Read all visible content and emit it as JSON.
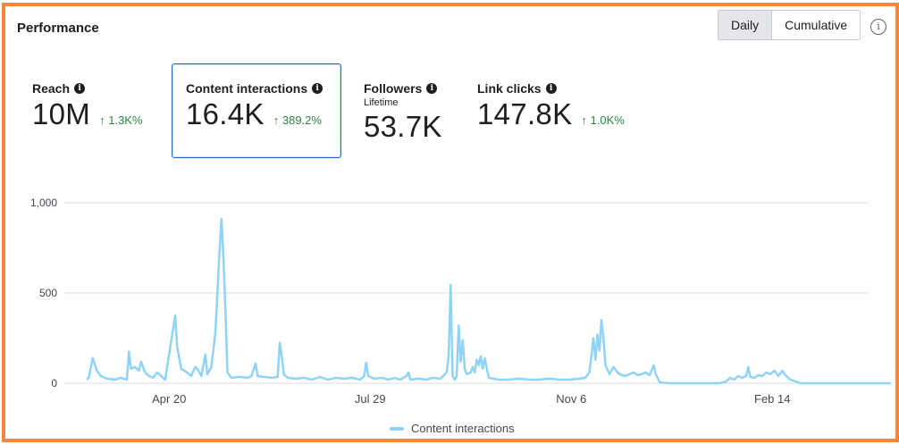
{
  "panel": {
    "title": "Performance"
  },
  "toggle": {
    "daily_label": "Daily",
    "cumulative_label": "Cumulative",
    "active": "Daily"
  },
  "info_glyph": "i",
  "metrics": [
    {
      "label": "Reach",
      "value": "10M",
      "change": "↑ 1.3K%"
    },
    {
      "label": "Content interactions",
      "value": "16.4K",
      "change": "↑ 389.2%",
      "selected": true
    },
    {
      "label": "Followers",
      "sublabel": "Lifetime",
      "value": "53.7K"
    },
    {
      "label": "Link clicks",
      "value": "147.8K",
      "change": "↑ 1.0K%"
    }
  ],
  "chart_data": {
    "type": "line",
    "ylim": [
      0,
      1000
    ],
    "yticks": [
      "0",
      "500",
      "1,000"
    ],
    "xticks": [
      {
        "label": "Apr 20",
        "day": 41
      },
      {
        "label": "Jul 29",
        "day": 141
      },
      {
        "label": "Nov 6",
        "day": 241
      },
      {
        "label": "Feb 14",
        "day": 341
      }
    ],
    "legend": "Content interactions",
    "color": "#8fd3f6",
    "points": [
      [
        0,
        20
      ],
      [
        1,
        30
      ],
      [
        3,
        140
      ],
      [
        5,
        70
      ],
      [
        7,
        40
      ],
      [
        10,
        25
      ],
      [
        14,
        20
      ],
      [
        17,
        30
      ],
      [
        20,
        20
      ],
      [
        21,
        175
      ],
      [
        22,
        80
      ],
      [
        24,
        90
      ],
      [
        26,
        70
      ],
      [
        27,
        120
      ],
      [
        29,
        60
      ],
      [
        31,
        40
      ],
      [
        33,
        30
      ],
      [
        35,
        60
      ],
      [
        37,
        40
      ],
      [
        39,
        20
      ],
      [
        44,
        375
      ],
      [
        45,
        200
      ],
      [
        47,
        80
      ],
      [
        50,
        60
      ],
      [
        52,
        40
      ],
      [
        54,
        90
      ],
      [
        55,
        80
      ],
      [
        57,
        40
      ],
      [
        59,
        160
      ],
      [
        60,
        50
      ],
      [
        62,
        90
      ],
      [
        64,
        280
      ],
      [
        65,
        500
      ],
      [
        66,
        720
      ],
      [
        67,
        910
      ],
      [
        68,
        700
      ],
      [
        69,
        400
      ],
      [
        70,
        60
      ],
      [
        72,
        30
      ],
      [
        76,
        35
      ],
      [
        80,
        30
      ],
      [
        82,
        40
      ],
      [
        84,
        110
      ],
      [
        85,
        40
      ],
      [
        88,
        35
      ],
      [
        92,
        30
      ],
      [
        95,
        35
      ],
      [
        96,
        225
      ],
      [
        97,
        150
      ],
      [
        98,
        50
      ],
      [
        100,
        30
      ],
      [
        104,
        25
      ],
      [
        108,
        30
      ],
      [
        112,
        20
      ],
      [
        116,
        35
      ],
      [
        120,
        20
      ],
      [
        124,
        30
      ],
      [
        128,
        25
      ],
      [
        132,
        30
      ],
      [
        136,
        20
      ],
      [
        138,
        40
      ],
      [
        139,
        115
      ],
      [
        140,
        40
      ],
      [
        143,
        25
      ],
      [
        147,
        30
      ],
      [
        150,
        20
      ],
      [
        153,
        30
      ],
      [
        156,
        20
      ],
      [
        159,
        40
      ],
      [
        160,
        60
      ],
      [
        161,
        20
      ],
      [
        165,
        25
      ],
      [
        169,
        20
      ],
      [
        172,
        30
      ],
      [
        176,
        25
      ],
      [
        179,
        60
      ],
      [
        180,
        150
      ],
      [
        181,
        545
      ],
      [
        182,
        40
      ],
      [
        183,
        20
      ],
      [
        184,
        40
      ],
      [
        185,
        320
      ],
      [
        186,
        120
      ],
      [
        187,
        240
      ],
      [
        188,
        80
      ],
      [
        189,
        50
      ],
      [
        191,
        60
      ],
      [
        192,
        90
      ],
      [
        193,
        60
      ],
      [
        194,
        130
      ],
      [
        195,
        100
      ],
      [
        196,
        150
      ],
      [
        197,
        80
      ],
      [
        198,
        140
      ],
      [
        199,
        80
      ],
      [
        200,
        30
      ],
      [
        205,
        20
      ],
      [
        210,
        20
      ],
      [
        215,
        25
      ],
      [
        220,
        20
      ],
      [
        225,
        20
      ],
      [
        230,
        25
      ],
      [
        235,
        20
      ],
      [
        240,
        20
      ],
      [
        245,
        25
      ],
      [
        248,
        30
      ],
      [
        250,
        60
      ],
      [
        251,
        150
      ],
      [
        252,
        250
      ],
      [
        253,
        130
      ],
      [
        254,
        270
      ],
      [
        255,
        180
      ],
      [
        256,
        350
      ],
      [
        257,
        250
      ],
      [
        258,
        100
      ],
      [
        260,
        50
      ],
      [
        262,
        90
      ],
      [
        264,
        60
      ],
      [
        266,
        45
      ],
      [
        268,
        40
      ],
      [
        270,
        50
      ],
      [
        272,
        60
      ],
      [
        274,
        45
      ],
      [
        276,
        50
      ],
      [
        278,
        60
      ],
      [
        280,
        45
      ],
      [
        282,
        100
      ],
      [
        283,
        50
      ],
      [
        285,
        5
      ],
      [
        290,
        0
      ],
      [
        295,
        0
      ],
      [
        300,
        0
      ],
      [
        305,
        0
      ],
      [
        310,
        0
      ],
      [
        315,
        0
      ],
      [
        318,
        10
      ],
      [
        320,
        30
      ],
      [
        322,
        20
      ],
      [
        324,
        40
      ],
      [
        326,
        30
      ],
      [
        328,
        40
      ],
      [
        329,
        90
      ],
      [
        330,
        35
      ],
      [
        332,
        30
      ],
      [
        334,
        45
      ],
      [
        336,
        40
      ],
      [
        338,
        60
      ],
      [
        340,
        50
      ],
      [
        342,
        70
      ],
      [
        344,
        40
      ],
      [
        346,
        70
      ],
      [
        347,
        50
      ],
      [
        348,
        40
      ],
      [
        350,
        20
      ],
      [
        355,
        0
      ],
      [
        360,
        0
      ],
      [
        365,
        0
      ],
      [
        370,
        0
      ],
      [
        378,
        0
      ],
      [
        385,
        0
      ],
      [
        393,
        0
      ],
      [
        400,
        0
      ]
    ]
  }
}
